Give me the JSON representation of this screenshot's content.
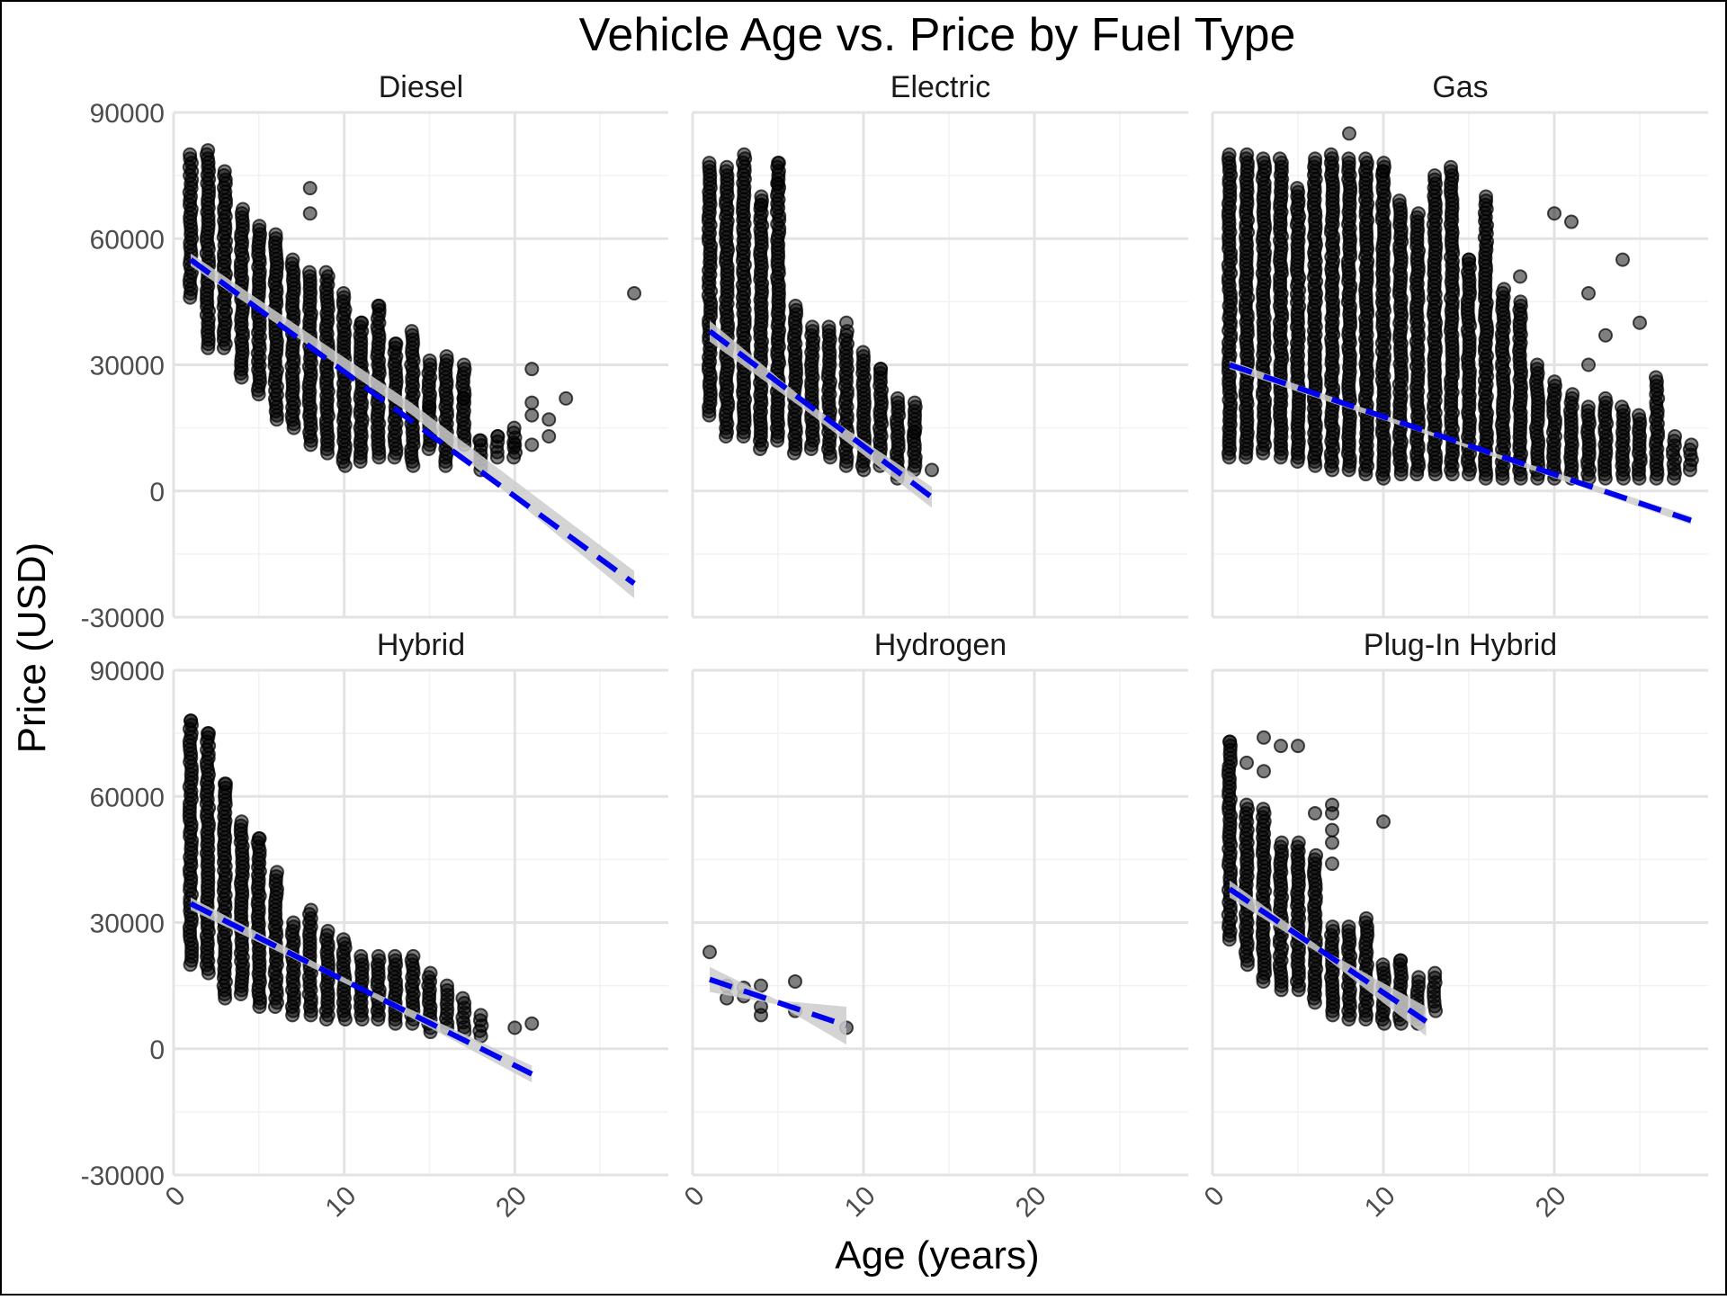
{
  "chart_data": {
    "type": "scatter",
    "title": "Vehicle Age vs. Price by Fuel Type",
    "xlabel": "Age (years)",
    "ylabel": "Price (USD)",
    "xlim": [
      0,
      29
    ],
    "ylim": [
      -30000,
      90000
    ],
    "x_ticks": [
      0,
      10,
      20
    ],
    "y_ticks": [
      -30000,
      0,
      30000,
      60000,
      90000
    ],
    "grid": true,
    "trend_line": {
      "style": "dashed",
      "color": "#0000ee"
    },
    "band_color": "#cccccc",
    "point_color": "#000000",
    "panels": [
      {
        "name": "Diesel",
        "fit": {
          "x0": 1,
          "y0": 55000,
          "x1": 27,
          "y1": -22000
        },
        "band": [
          [
            1,
            56500,
            53500
          ],
          [
            14,
            20800,
            18000
          ],
          [
            27,
            -19000,
            -25500
          ]
        ],
        "columns": [
          [
            1,
            46000,
            80000
          ],
          [
            2,
            34000,
            81000
          ],
          [
            3,
            34000,
            76000
          ],
          [
            4,
            27000,
            67000
          ],
          [
            5,
            23000,
            63000
          ],
          [
            6,
            17000,
            61000
          ],
          [
            7,
            15000,
            55000
          ],
          [
            8,
            11000,
            52000
          ],
          [
            9,
            9000,
            52000
          ],
          [
            10,
            6000,
            47000
          ],
          [
            11,
            7000,
            40000
          ],
          [
            12,
            8000,
            44000
          ],
          [
            13,
            8000,
            35000
          ],
          [
            14,
            6000,
            38000
          ],
          [
            15,
            10000,
            31000
          ],
          [
            16,
            6000,
            32000
          ],
          [
            17,
            11000,
            30000
          ],
          [
            18,
            5000,
            12000
          ],
          [
            19,
            8000,
            13000
          ],
          [
            20,
            8000,
            15000
          ]
        ],
        "outliers": [
          [
            8,
            72000
          ],
          [
            8,
            66000
          ],
          [
            11,
            40000
          ],
          [
            12,
            44000
          ],
          [
            13,
            35000
          ],
          [
            15,
            20000
          ],
          [
            17,
            22000
          ],
          [
            18,
            12000
          ],
          [
            19,
            13000
          ],
          [
            20,
            11000
          ],
          [
            21,
            29000
          ],
          [
            21,
            21000
          ],
          [
            21,
            18000
          ],
          [
            21,
            11000
          ],
          [
            22,
            17000
          ],
          [
            22,
            13000
          ],
          [
            23,
            22000
          ],
          [
            27,
            47000
          ]
        ]
      },
      {
        "name": "Electric",
        "fit": {
          "x0": 1,
          "y0": 38000,
          "x1": 14,
          "y1": -1500
        },
        "band": [
          [
            1,
            40500,
            35500
          ],
          [
            7,
            20200,
            18000
          ],
          [
            14,
            1000,
            -4000
          ]
        ],
        "columns": [
          [
            1,
            18000,
            78000
          ],
          [
            2,
            13000,
            77000
          ],
          [
            3,
            13000,
            80000
          ],
          [
            4,
            10000,
            70000
          ],
          [
            5,
            12000,
            78000
          ],
          [
            6,
            9000,
            44000
          ],
          [
            7,
            10000,
            39000
          ],
          [
            8,
            8000,
            39000
          ],
          [
            9,
            6000,
            38000
          ],
          [
            10,
            5000,
            33000
          ],
          [
            11,
            6000,
            29000
          ],
          [
            12,
            3000,
            22000
          ],
          [
            13,
            5000,
            21000
          ]
        ],
        "outliers": [
          [
            5,
            78000
          ],
          [
            5,
            73000
          ],
          [
            4,
            68000
          ],
          [
            9,
            40000
          ],
          [
            11,
            29000
          ],
          [
            13,
            14000
          ],
          [
            14,
            5000
          ]
        ]
      },
      {
        "name": "Gas",
        "fit": {
          "x0": 1,
          "y0": 30000,
          "x1": 28,
          "y1": -7000
        },
        "band": [
          [
            1,
            31000,
            29000
          ],
          [
            14,
            12300,
            11500
          ],
          [
            28,
            -6000,
            -8000
          ]
        ],
        "columns": [
          [
            1,
            8000,
            80000
          ],
          [
            2,
            8000,
            80000
          ],
          [
            3,
            9000,
            79000
          ],
          [
            4,
            8000,
            79000
          ],
          [
            5,
            7000,
            72000
          ],
          [
            6,
            6000,
            79000
          ],
          [
            7,
            5000,
            80000
          ],
          [
            8,
            5000,
            79000
          ],
          [
            9,
            4000,
            79000
          ],
          [
            10,
            3000,
            78000
          ],
          [
            11,
            4000,
            69000
          ],
          [
            12,
            4000,
            66000
          ],
          [
            13,
            4000,
            75000
          ],
          [
            14,
            4000,
            77000
          ],
          [
            15,
            4000,
            55000
          ],
          [
            16,
            3000,
            69000
          ],
          [
            17,
            3000,
            48000
          ],
          [
            18,
            3000,
            45000
          ],
          [
            19,
            3000,
            30000
          ],
          [
            20,
            3000,
            26000
          ],
          [
            21,
            3000,
            23000
          ],
          [
            22,
            3000,
            20000
          ],
          [
            23,
            3000,
            22000
          ],
          [
            24,
            3000,
            20000
          ],
          [
            25,
            3000,
            18000
          ],
          [
            26,
            3000,
            27000
          ],
          [
            27,
            3000,
            13000
          ],
          [
            28,
            5000,
            11000
          ]
        ],
        "outliers": [
          [
            8,
            85000
          ],
          [
            10,
            76000
          ],
          [
            16,
            70000
          ],
          [
            20,
            66000
          ],
          [
            21,
            64000
          ],
          [
            22,
            47000
          ],
          [
            23,
            37000
          ],
          [
            24,
            55000
          ],
          [
            25,
            40000
          ],
          [
            15,
            55000
          ],
          [
            18,
            51000
          ],
          [
            22,
            30000
          ]
        ]
      },
      {
        "name": "Hybrid",
        "fit": {
          "x0": 1,
          "y0": 34500,
          "x1": 21,
          "y1": -6000
        },
        "band": [
          [
            1,
            36000,
            33000
          ],
          [
            11,
            14800,
            13700
          ],
          [
            21,
            -4000,
            -8000
          ]
        ],
        "columns": [
          [
            1,
            20000,
            78000
          ],
          [
            2,
            18000,
            75000
          ],
          [
            3,
            12000,
            63000
          ],
          [
            4,
            13000,
            54000
          ],
          [
            5,
            10000,
            50000
          ],
          [
            6,
            10000,
            42000
          ],
          [
            7,
            8000,
            30000
          ],
          [
            8,
            8000,
            33000
          ],
          [
            9,
            7000,
            28000
          ],
          [
            10,
            7000,
            26000
          ],
          [
            11,
            7000,
            22000
          ],
          [
            12,
            7000,
            22000
          ],
          [
            13,
            6000,
            22000
          ],
          [
            14,
            6000,
            22000
          ],
          [
            15,
            4000,
            18000
          ],
          [
            16,
            5000,
            15000
          ],
          [
            17,
            4000,
            12000
          ],
          [
            18,
            3000,
            8000
          ]
        ],
        "outliers": [
          [
            1,
            78000
          ],
          [
            2,
            75000
          ],
          [
            3,
            63000
          ],
          [
            5,
            50000
          ],
          [
            20,
            5000
          ],
          [
            21,
            6000
          ]
        ]
      },
      {
        "name": "Hydrogen",
        "fit": {
          "x0": 1,
          "y0": 16500,
          "x1": 9,
          "y1": 5500
        },
        "band": [
          [
            1,
            19500,
            13500
          ],
          [
            5,
            11500,
            10500
          ],
          [
            9,
            10000,
            1000
          ]
        ],
        "columns": [],
        "outliers": [
          [
            1,
            23000
          ],
          [
            2,
            15000
          ],
          [
            2,
            12000
          ],
          [
            3,
            14500
          ],
          [
            3,
            12500
          ],
          [
            4,
            15000
          ],
          [
            4,
            10000
          ],
          [
            4,
            8000
          ],
          [
            6,
            16000
          ],
          [
            6,
            9000
          ],
          [
            9,
            5000
          ]
        ]
      },
      {
        "name": "Plug-In Hybrid",
        "fit": {
          "x0": 1,
          "y0": 38000,
          "x1": 12.5,
          "y1": 6500
        },
        "band": [
          [
            1,
            40000,
            36000
          ],
          [
            6.5,
            23500,
            22000
          ],
          [
            12.5,
            10000,
            3000
          ]
        ],
        "columns": [
          [
            1,
            26000,
            73000
          ],
          [
            2,
            20000,
            58000
          ],
          [
            3,
            16000,
            57000
          ],
          [
            4,
            14000,
            49000
          ],
          [
            5,
            14000,
            49000
          ],
          [
            6,
            11000,
            46000
          ],
          [
            7,
            8000,
            29000
          ],
          [
            8,
            7000,
            29000
          ],
          [
            9,
            7000,
            30000
          ],
          [
            10,
            6000,
            20000
          ],
          [
            11,
            6000,
            21000
          ],
          [
            12,
            6000,
            17000
          ],
          [
            13,
            9000,
            18000
          ]
        ],
        "outliers": [
          [
            1,
            73000
          ],
          [
            2,
            68000
          ],
          [
            3,
            74000
          ],
          [
            3,
            66000
          ],
          [
            4,
            72000
          ],
          [
            5,
            72000
          ],
          [
            7,
            58000
          ],
          [
            7,
            56000
          ],
          [
            7,
            52000
          ],
          [
            7,
            49000
          ],
          [
            7,
            44000
          ],
          [
            6,
            56000
          ],
          [
            9,
            31000
          ],
          [
            10,
            54000
          ],
          [
            11,
            21000
          ]
        ]
      }
    ]
  }
}
